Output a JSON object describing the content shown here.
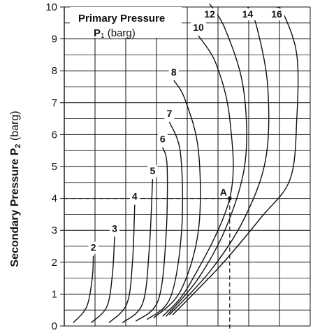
{
  "chart_data": {
    "type": "line",
    "title": "",
    "legend_title_line1": "Primary Pressure",
    "legend_title_line2_symbol": "P",
    "legend_title_line2_sub": "1",
    "legend_title_line2_unit": " (barg)",
    "ylabel_main": "Secondary Pressure P",
    "ylabel_sub": "2",
    "ylabel_unit": " (barg)",
    "xlabel": "",
    "ylim": [
      0,
      10
    ],
    "yticks": [
      "0",
      "1",
      "2",
      "3",
      "4",
      "5",
      "6",
      "7",
      "8",
      "9",
      "10"
    ],
    "grid": true,
    "point_annotation": {
      "label": "A",
      "x": 7.4,
      "y": 4.0
    },
    "series": [
      {
        "name": "2",
        "points": [
          [
            0.4,
            0.1
          ],
          [
            1.0,
            0.6
          ],
          [
            1.25,
            1.5
          ],
          [
            1.3,
            2.2
          ]
        ]
      },
      {
        "name": "3",
        "points": [
          [
            1.2,
            0.1
          ],
          [
            1.9,
            0.6
          ],
          [
            2.15,
            1.6
          ],
          [
            2.25,
            2.8
          ]
        ]
      },
      {
        "name": "4",
        "points": [
          [
            2.0,
            0.1
          ],
          [
            2.8,
            0.7
          ],
          [
            3.05,
            2.0
          ],
          [
            3.15,
            3.8
          ]
        ]
      },
      {
        "name": "5",
        "points": [
          [
            2.6,
            0.1
          ],
          [
            3.5,
            0.7
          ],
          [
            3.8,
            2.4
          ],
          [
            3.95,
            4.6
          ]
        ]
      },
      {
        "name": "6",
        "points": [
          [
            3.2,
            0.15
          ],
          [
            4.2,
            0.8
          ],
          [
            4.55,
            2.8
          ],
          [
            4.6,
            5.0
          ],
          [
            4.4,
            5.6
          ]
        ]
      },
      {
        "name": "7",
        "points": [
          [
            3.7,
            0.2
          ],
          [
            4.75,
            0.9
          ],
          [
            5.25,
            3.0
          ],
          [
            5.2,
            5.4
          ],
          [
            4.7,
            6.4
          ]
        ]
      },
      {
        "name": "8",
        "points": [
          [
            4.0,
            0.25
          ],
          [
            5.2,
            1.1
          ],
          [
            6.0,
            3.0
          ],
          [
            6.0,
            5.5
          ],
          [
            5.4,
            7.1
          ],
          [
            4.9,
            7.7
          ]
        ]
      },
      {
        "name": "10",
        "points": [
          [
            4.4,
            0.3
          ],
          [
            5.6,
            1.3
          ],
          [
            7.4,
            4.0
          ],
          [
            7.4,
            6.5
          ],
          [
            6.8,
            8.2
          ],
          [
            6.0,
            9.1
          ]
        ]
      },
      {
        "name": "12",
        "points": [
          [
            4.55,
            0.3
          ],
          [
            6.0,
            1.5
          ],
          [
            7.3,
            3.2
          ],
          [
            8.1,
            5.2
          ],
          [
            8.0,
            7.5
          ],
          [
            7.2,
            9.3
          ],
          [
            6.5,
            10.1
          ]
        ]
      },
      {
        "name": "14",
        "points": [
          [
            4.7,
            0.35
          ],
          [
            6.5,
            1.7
          ],
          [
            8.0,
            3.3
          ],
          [
            9.0,
            5.2
          ],
          [
            9.1,
            7.5
          ],
          [
            8.6,
            9.4
          ],
          [
            8.2,
            10.0
          ]
        ]
      },
      {
        "name": "16",
        "points": [
          [
            4.85,
            0.35
          ],
          [
            7.0,
            1.9
          ],
          [
            8.8,
            3.4
          ],
          [
            10.1,
            4.6
          ],
          [
            10.4,
            6.5
          ],
          [
            10.4,
            8.5
          ],
          [
            9.8,
            9.8
          ],
          [
            9.5,
            10.0
          ]
        ]
      }
    ]
  }
}
